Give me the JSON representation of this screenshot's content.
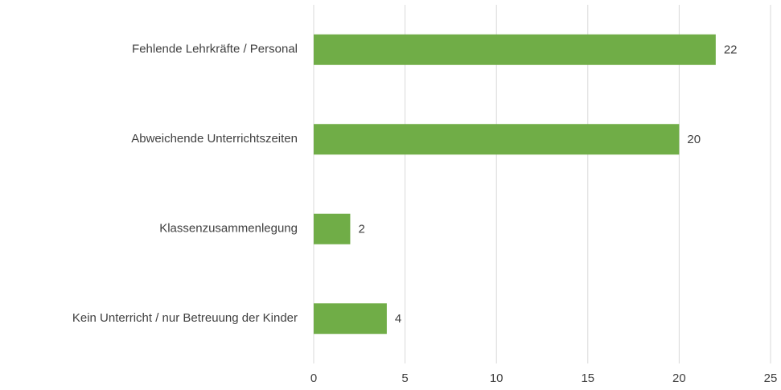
{
  "chart_data": {
    "type": "hbar",
    "categories": [
      "Fehlende Lehrkräfte / Personal",
      "Abweichende Unterrichtszeiten",
      "Klassenzusammenlegung",
      "Kein Unterricht / nur Betreuung der Kinder"
    ],
    "values": [
      22,
      20,
      2,
      4
    ],
    "color": "#70ad47",
    "xlim": [
      0,
      25
    ],
    "xticks": [
      0,
      5,
      10,
      15,
      20,
      25
    ],
    "grid": true
  }
}
